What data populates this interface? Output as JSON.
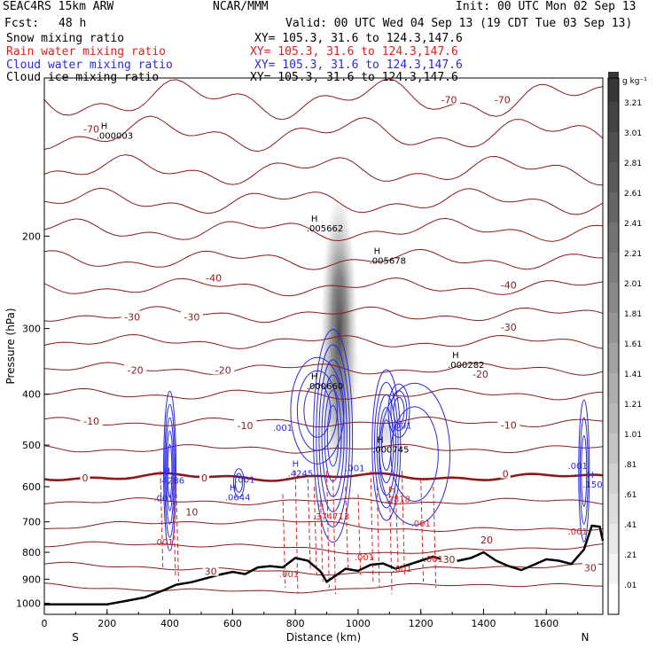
{
  "header": {
    "model": "SEAC4RS 15km ARW",
    "org": "NCAR/MMM",
    "init": "Init: 00 UTC Mon 02 Sep 13",
    "fcst_label": "Fcst:",
    "fcst_value": "48 h",
    "valid": "Valid: 00 UTC Wed 04 Sep 13 (19 CDT Tue 03 Sep 13)",
    "fields": [
      {
        "name": "Snow mixing ratio",
        "xy": "XY= 105.3, 31.6 to 124.3,147.6",
        "color": "#000000"
      },
      {
        "name": "Rain water mixing ratio",
        "xy": "XY= 105.3, 31.6 to 124.3,147.6",
        "color": "#e02020"
      },
      {
        "name": "Cloud water mixing ratio",
        "xy": "XY= 105.3, 31.6 to 124.3,147.6",
        "color": "#2a2ae0"
      },
      {
        "name": "Cloud ice mixing ratio",
        "xy": "XY= 105.3, 31.6 to 124.3,147.6",
        "color": "#000000"
      }
    ]
  },
  "chart_data": {
    "type": "cross-section",
    "xlabel": "Distance (km)",
    "ylabel": "Pressure (hPa)",
    "xlim": [
      0,
      1780
    ],
    "ylim": [
      1050,
      100
    ],
    "xticks": [
      0,
      200,
      400,
      600,
      800,
      1000,
      1200,
      1400,
      1600
    ],
    "yticks": [
      200,
      300,
      400,
      500,
      600,
      700,
      800,
      900,
      1000
    ],
    "end_labels": {
      "left": "S",
      "right": "N"
    },
    "colorbar": {
      "unit": "g kg⁻¹",
      "levels": [
        ".01",
        ".21",
        ".41",
        ".61",
        ".81",
        "1.01",
        "1.21",
        "1.41",
        "1.61",
        "1.81",
        "2.01",
        "2.21",
        "2.41",
        "2.61",
        "2.81",
        "3.01",
        "3.21"
      ]
    },
    "temperature_labels_C": [
      {
        "label": "-70",
        "x": 150,
        "p": 125
      },
      {
        "label": "-70",
        "x": 1290,
        "p": 110
      },
      {
        "label": "-70",
        "x": 1460,
        "p": 110
      },
      {
        "label": "-40",
        "x": 540,
        "p": 240
      },
      {
        "label": "-40",
        "x": 1480,
        "p": 248
      },
      {
        "label": "-30",
        "x": 280,
        "p": 285
      },
      {
        "label": "-30",
        "x": 470,
        "p": 285
      },
      {
        "label": "-30",
        "x": 1480,
        "p": 298
      },
      {
        "label": "-20",
        "x": 290,
        "p": 360
      },
      {
        "label": "-20",
        "x": 570,
        "p": 360
      },
      {
        "label": "-20",
        "x": 1390,
        "p": 366
      },
      {
        "label": "-10",
        "x": 150,
        "p": 450
      },
      {
        "label": "-10",
        "x": 640,
        "p": 459
      },
      {
        "label": "-10",
        "x": 1480,
        "p": 458
      },
      {
        "label": "0",
        "x": 130,
        "p": 577
      },
      {
        "label": "0",
        "x": 510,
        "p": 577
      },
      {
        "label": "0",
        "x": 1470,
        "p": 567
      },
      {
        "label": "10",
        "x": 470,
        "p": 670
      },
      {
        "label": "20",
        "x": 1410,
        "p": 757
      },
      {
        "label": "30",
        "x": 530,
        "p": 870
      },
      {
        "label": "30",
        "x": 1290,
        "p": 825
      },
      {
        "label": "30",
        "x": 1740,
        "p": 856
      }
    ],
    "max_labels": [
      {
        "H": "H",
        "value": ".000003",
        "x": 180,
        "p": 130,
        "color": "#000000"
      },
      {
        "H": "H",
        "value": ".005662",
        "x": 850,
        "p": 195,
        "color": "#000000"
      },
      {
        "H": "H",
        "value": ".005678",
        "x": 1050,
        "p": 225,
        "color": "#000000"
      },
      {
        "H": "H",
        "value": ".000282",
        "x": 1300,
        "p": 355,
        "color": "#000000"
      },
      {
        "H": "H",
        "value": ".000660",
        "x": 850,
        "p": 390,
        "color": "#000000"
      },
      {
        "H": "H",
        "value": ".000745",
        "x": 1060,
        "p": 515,
        "color": "#000000"
      },
      {
        "H": "H",
        "value": ".4245",
        "x": 790,
        "p": 572,
        "color": "#2a2ae0"
      },
      {
        "H": "H",
        "value": ".0644",
        "x": 590,
        "p": 635,
        "color": "#2a2ae0"
      },
      {
        "H": "H",
        "value": ".150",
        "x": 1730,
        "p": 600,
        "color": "#2a2ae0"
      },
      {
        "H": "H",
        "value": ".4286",
        "x": 380,
        "p": 590,
        "color": "#2a2ae0"
      },
      {
        "H": "H",
        "value": ".2818",
        "x": 1100,
        "p": 640,
        "color": "#e02020"
      },
      {
        "H": "H",
        "value": ".374713",
        "x": 870,
        "p": 690,
        "color": "#e02020"
      }
    ],
    "contour_labels": [
      {
        "value": ".001",
        "x": 760,
        "p": 470,
        "color": "#2a2ae0"
      },
      {
        "value": ".001",
        "x": 1140,
        "p": 465,
        "color": "#2a2ae0"
      },
      {
        "value": ".001",
        "x": 640,
        "p": 590,
        "color": "#2a2ae0"
      },
      {
        "value": ".001",
        "x": 990,
        "p": 560,
        "color": "#2a2ae0"
      },
      {
        "value": ".001",
        "x": 1700,
        "p": 555,
        "color": "#2a2ae0"
      },
      {
        "value": ".001",
        "x": 380,
        "p": 640,
        "color": "#2a2ae0"
      },
      {
        "value": ".001",
        "x": 380,
        "p": 775,
        "color": "#e02020"
      },
      {
        "value": ".001",
        "x": 1200,
        "p": 715,
        "color": "#e02020"
      },
      {
        "value": ".001",
        "x": 1020,
        "p": 828,
        "color": "#e02020"
      },
      {
        "value": ".001",
        "x": 780,
        "p": 892,
        "color": "#e02020"
      },
      {
        "value": ".001",
        "x": 1140,
        "p": 872,
        "color": "#e02020"
      },
      {
        "value": ".001",
        "x": 1240,
        "p": 835,
        "color": "#e02020"
      },
      {
        "value": ".001",
        "x": 1700,
        "p": 740,
        "color": "#e02020"
      }
    ],
    "terrain_pressure_profile": [
      {
        "x": 0,
        "p": 1005
      },
      {
        "x": 200,
        "p": 1005
      },
      {
        "x": 260,
        "p": 990
      },
      {
        "x": 320,
        "p": 975
      },
      {
        "x": 380,
        "p": 945
      },
      {
        "x": 420,
        "p": 922
      },
      {
        "x": 470,
        "p": 912
      },
      {
        "x": 520,
        "p": 895
      },
      {
        "x": 560,
        "p": 882
      },
      {
        "x": 600,
        "p": 872
      },
      {
        "x": 640,
        "p": 880
      },
      {
        "x": 680,
        "p": 855
      },
      {
        "x": 720,
        "p": 850
      },
      {
        "x": 760,
        "p": 855
      },
      {
        "x": 800,
        "p": 820
      },
      {
        "x": 840,
        "p": 830
      },
      {
        "x": 880,
        "p": 870
      },
      {
        "x": 900,
        "p": 910
      },
      {
        "x": 930,
        "p": 885
      },
      {
        "x": 960,
        "p": 860
      },
      {
        "x": 1000,
        "p": 868
      },
      {
        "x": 1040,
        "p": 845
      },
      {
        "x": 1080,
        "p": 840
      },
      {
        "x": 1120,
        "p": 860
      },
      {
        "x": 1160,
        "p": 845
      },
      {
        "x": 1200,
        "p": 830
      },
      {
        "x": 1240,
        "p": 815
      },
      {
        "x": 1280,
        "p": 830
      },
      {
        "x": 1320,
        "p": 830
      },
      {
        "x": 1360,
        "p": 820
      },
      {
        "x": 1400,
        "p": 800
      },
      {
        "x": 1440,
        "p": 830
      },
      {
        "x": 1480,
        "p": 850
      },
      {
        "x": 1520,
        "p": 865
      },
      {
        "x": 1560,
        "p": 845
      },
      {
        "x": 1600,
        "p": 825
      },
      {
        "x": 1640,
        "p": 830
      },
      {
        "x": 1680,
        "p": 842
      },
      {
        "x": 1720,
        "p": 790
      },
      {
        "x": 1745,
        "p": 712
      },
      {
        "x": 1770,
        "p": 715
      },
      {
        "x": 1780,
        "p": 760
      }
    ]
  }
}
